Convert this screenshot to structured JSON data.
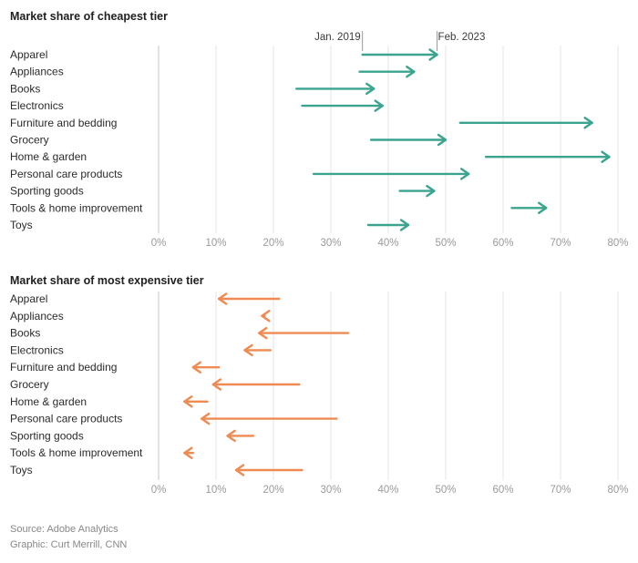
{
  "colors": {
    "cheapest": "#3aa48f",
    "expensive": "#ef8a52",
    "grid": "#e4e4e4",
    "baseline": "#cfcfcf"
  },
  "chart_data": [
    {
      "type": "arrow",
      "title": "Market share of cheapest tier",
      "annotations": {
        "from_label": "Jan. 2019",
        "to_label": "Feb. 2023"
      },
      "x_ticks": [
        "0%",
        "10%",
        "20%",
        "30%",
        "40%",
        "50%",
        "60%",
        "70%",
        "80%"
      ],
      "xlim": [
        0,
        80
      ],
      "categories": [
        "Apparel",
        "Appliances",
        "Books",
        "Electronics",
        "Furniture and bedding",
        "Grocery",
        "Home & garden",
        "Personal care products",
        "Sporting goods",
        "Tools & home improvement",
        "Toys"
      ],
      "series": [
        {
          "name": "Jan. 2019",
          "values": [
            35.5,
            35,
            24,
            25,
            52.5,
            37,
            57,
            27,
            42,
            61.5,
            36.5
          ]
        },
        {
          "name": "Feb. 2023",
          "values": [
            48.5,
            44.5,
            37.5,
            39,
            75.5,
            50,
            78.5,
            54,
            48,
            67.5,
            43.5
          ]
        }
      ],
      "grid": true
    },
    {
      "type": "arrow",
      "title": "Market share of most expensive tier",
      "x_ticks": [
        "0%",
        "10%",
        "20%",
        "30%",
        "40%",
        "50%",
        "60%",
        "70%",
        "80%"
      ],
      "xlim": [
        0,
        80
      ],
      "categories": [
        "Apparel",
        "Appliances",
        "Books",
        "Electronics",
        "Furniture and bedding",
        "Grocery",
        "Home & garden",
        "Personal care products",
        "Sporting goods",
        "Tools & home improvement",
        "Toys"
      ],
      "series": [
        {
          "name": "Jan. 2019",
          "values": [
            21,
            18.5,
            33,
            19.5,
            10.5,
            24.5,
            8.5,
            31,
            16.5,
            6,
            25
          ]
        },
        {
          "name": "Feb. 2023",
          "values": [
            10.5,
            18,
            17.5,
            15,
            6,
            9.5,
            4.5,
            7.5,
            12,
            4.5,
            13.5
          ]
        }
      ],
      "grid": true
    }
  ],
  "footer": {
    "source": "Source: Adobe Analytics",
    "graphic": "Graphic: Curt Merrill, CNN"
  }
}
